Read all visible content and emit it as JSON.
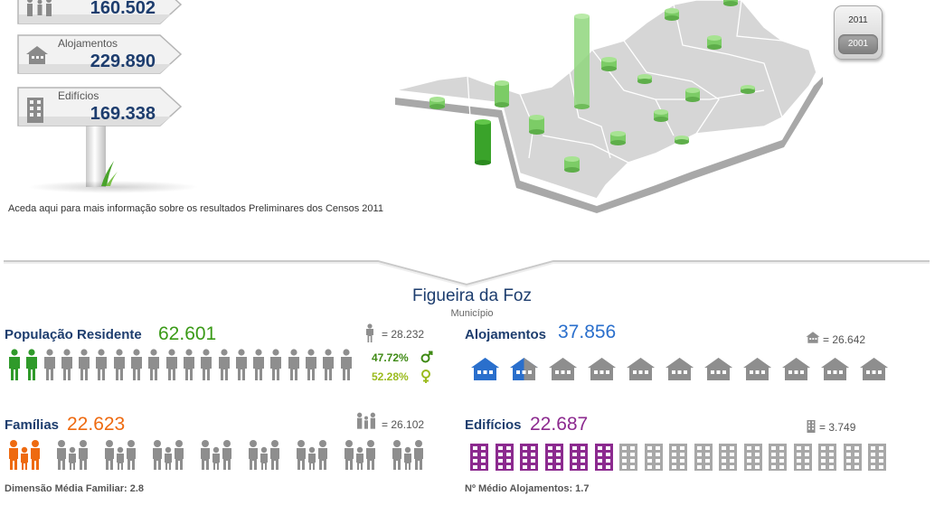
{
  "signs": [
    {
      "label": "",
      "value": "160.502",
      "icon": "family-icon"
    },
    {
      "label": "Alojamentos",
      "value": "229.890",
      "icon": "house-icon"
    },
    {
      "label": "Edifícios",
      "value": "169.338",
      "icon": "building-icon"
    }
  ],
  "info_link": "Aceda aqui para mais informação sobre os resultados Preliminares dos Censos 2011",
  "year_switch": {
    "years": [
      "2011",
      "2001"
    ],
    "selected": "2001"
  },
  "municipality": {
    "name": "Figueira da Foz",
    "type": "Município"
  },
  "population": {
    "label": "População Residente",
    "value": "62.601",
    "value_color": "#3a9a17",
    "legend": "= 28.232",
    "icon_total": 20,
    "icon_highlight": 2,
    "male_pct": "47.72%",
    "female_pct": "52.28%",
    "male_color": "#3f8a14",
    "female_color": "#9bbb1e"
  },
  "housing": {
    "label": "Alojamentos",
    "value": "37.856",
    "value_color": "#2a6fcc",
    "legend": "= 26.642",
    "icon_total": 11,
    "icon_highlight": 1,
    "icon_partial": 1
  },
  "families": {
    "label": "Famílias",
    "value": "22.623",
    "value_color": "#ee6a10",
    "legend": "= 26.102",
    "icon_total": 9,
    "icon_highlight": 1,
    "footnote": "Dimensão Média Familiar: 2.8"
  },
  "buildings": {
    "label": "Edifícios",
    "value": "22.687",
    "value_color": "#8c2a8f",
    "legend": "= 3.749",
    "icon_total": 17,
    "icon_highlight": 6,
    "footnote": "Nº Médio Alojamentos: 1.7"
  },
  "colors": {
    "grey_icon": "#8e8e8e",
    "green": "#2f9a2a",
    "blue": "#2a6fcc",
    "orange": "#ee6a10",
    "purple": "#8c2a8f"
  }
}
